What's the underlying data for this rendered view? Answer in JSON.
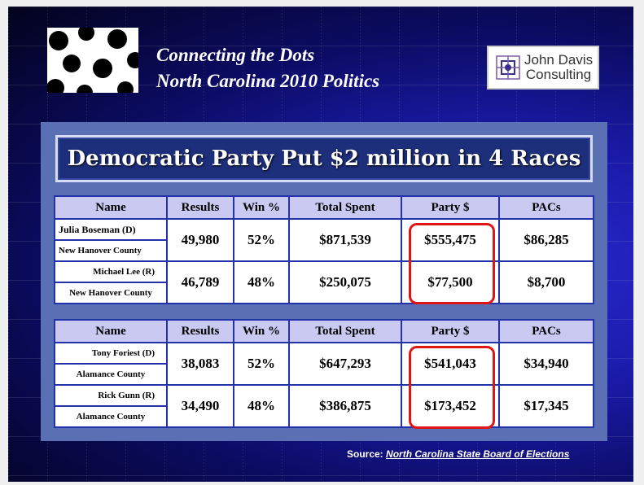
{
  "header": {
    "title_line1": "Connecting the Dots",
    "title_line2": "North Carolina 2010 Politics",
    "consulting_line1": "John Davis",
    "consulting_line2": "Consulting"
  },
  "banner": "Democratic Party Put $2 million in 4 Races",
  "columns": [
    "Name",
    "Results",
    "Win %",
    "Total Spent",
    "Party $",
    "PACs"
  ],
  "races": [
    {
      "candidates": [
        {
          "name": "Julia Boseman (D)",
          "county": "New Hanover County",
          "results": "49,980",
          "win": "52%",
          "total": "$871,539",
          "party": "$555,475",
          "pacs": "$86,285"
        },
        {
          "name": "Michael Lee (R)",
          "county": "New Hanover County",
          "results": "46,789",
          "win": "48%",
          "total": "$250,075",
          "party": "$77,500",
          "pacs": "$8,700"
        }
      ]
    },
    {
      "candidates": [
        {
          "name": "Tony Foriest (D)",
          "county": "Alamance County",
          "results": "38,083",
          "win": "52%",
          "total": "$647,293",
          "party": "$541,043",
          "pacs": "$34,940"
        },
        {
          "name": "Rick Gunn (R)",
          "county": "Alamance County",
          "results": "34,490",
          "win": "48%",
          "total": "$386,875",
          "party": "$173,452",
          "pacs": "$17,345"
        }
      ]
    }
  ],
  "source": {
    "label": "Source:",
    "link": "North Carolina State Board of Elections"
  },
  "colors": {
    "highlight": "#e01616",
    "header_fill": "#c9c9f2",
    "panel": "#5a6fb4"
  }
}
